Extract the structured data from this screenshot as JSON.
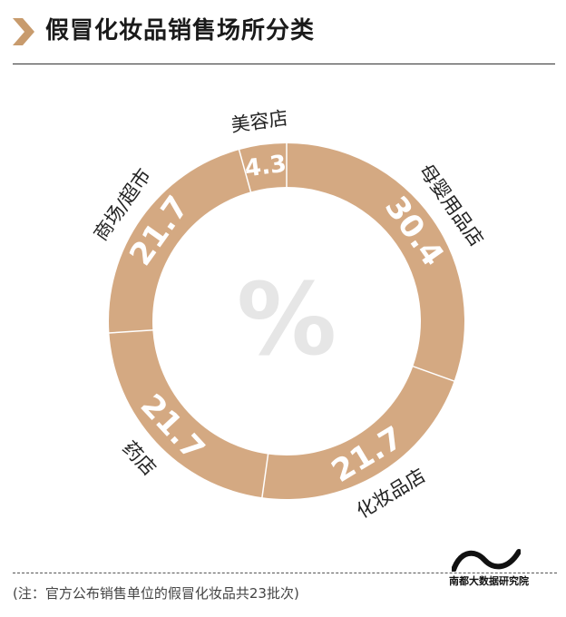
{
  "header": {
    "title": "假冒化妆品销售场所分类"
  },
  "chart_data": {
    "type": "donut",
    "center_symbol": "%",
    "segments": [
      {
        "label": "母婴用品店",
        "value": 30.4,
        "value_label": "30.4"
      },
      {
        "label": "化妆品店",
        "value": 21.7,
        "value_label": "21.7"
      },
      {
        "label": "药店",
        "value": 21.7,
        "value_label": "21.7"
      },
      {
        "label": "商场/超市",
        "value": 21.7,
        "value_label": "21.7"
      },
      {
        "label": "美容店",
        "value": 4.3,
        "value_label": "4.3"
      }
    ],
    "colors": {
      "ring": "#d4a982",
      "separator": "#ffffff",
      "value_text": "#ffffff",
      "label_text": "#222222",
      "center_symbol": "#e6e6e6"
    }
  },
  "footer": {
    "note": "(注：官方公布销售单位的假冒化妆品共23批次)",
    "brand": "南都大数据研究院"
  }
}
